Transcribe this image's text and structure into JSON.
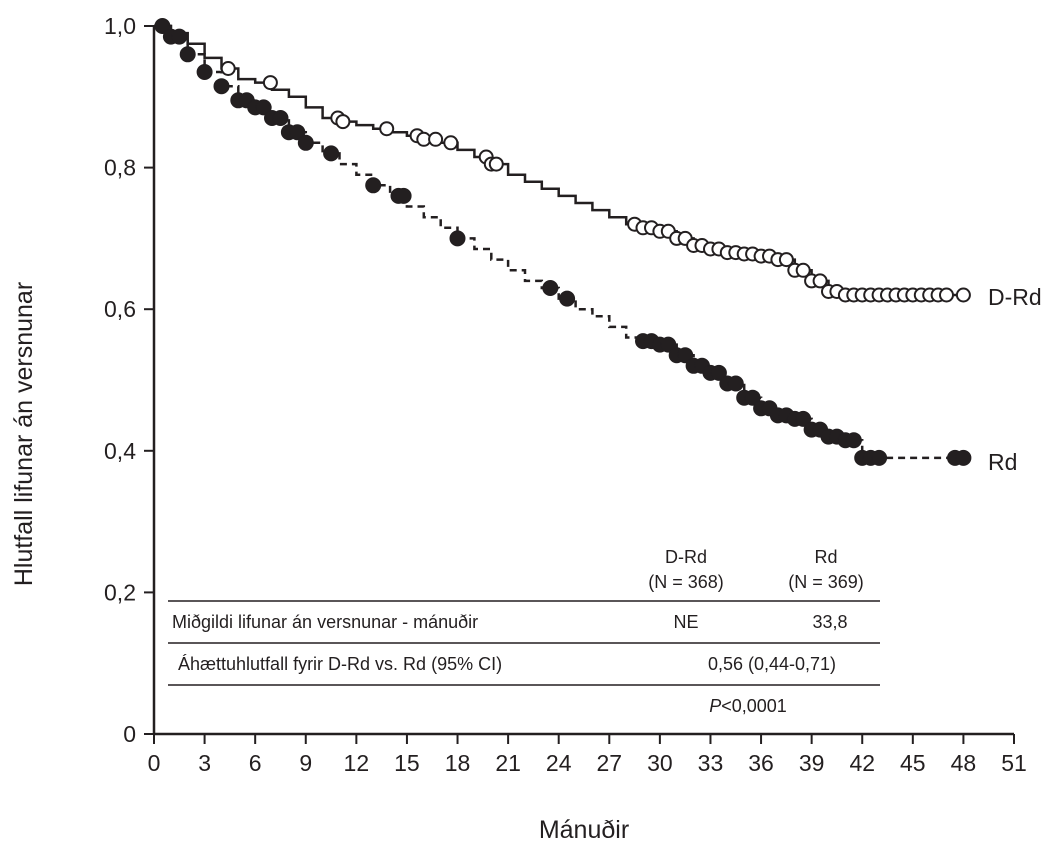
{
  "chart_data": {
    "type": "line",
    "title": "",
    "xlabel": "Mánuðir",
    "ylabel": "Hlutfall lifunar án versnunar",
    "xlim": [
      0,
      51
    ],
    "ylim": [
      0,
      1
    ],
    "x_ticks": [
      0,
      3,
      6,
      9,
      12,
      15,
      18,
      21,
      24,
      27,
      30,
      33,
      36,
      39,
      42,
      45,
      48,
      51
    ],
    "y_ticks": [
      {
        "value": 0,
        "label": "0"
      },
      {
        "value": 0.2,
        "label": "0,2"
      },
      {
        "value": 0.4,
        "label": "0,4"
      },
      {
        "value": 0.6,
        "label": "0,6"
      },
      {
        "value": 0.8,
        "label": "0,8"
      },
      {
        "value": 1.0,
        "label": "1,0"
      }
    ],
    "grid": false,
    "series": [
      {
        "name": "D-Rd",
        "color": "#231f20",
        "line_style": "solid",
        "marker": "open-circle",
        "x": [
          0,
          1,
          2,
          3,
          4,
          5,
          6,
          7,
          8,
          9,
          10,
          11,
          12,
          13,
          14,
          15,
          16,
          17,
          18,
          19,
          20,
          21,
          22,
          23,
          24,
          25,
          26,
          27,
          28,
          29,
          30,
          31,
          32,
          33,
          34,
          35,
          36,
          37,
          38,
          39,
          40,
          41,
          42,
          43,
          44,
          45,
          46,
          47,
          48
        ],
        "y": [
          1.0,
          0.99,
          0.975,
          0.955,
          0.94,
          0.925,
          0.92,
          0.91,
          0.9,
          0.885,
          0.87,
          0.865,
          0.86,
          0.855,
          0.85,
          0.845,
          0.84,
          0.835,
          0.825,
          0.815,
          0.805,
          0.79,
          0.78,
          0.77,
          0.76,
          0.75,
          0.74,
          0.73,
          0.72,
          0.715,
          0.71,
          0.7,
          0.69,
          0.685,
          0.68,
          0.678,
          0.675,
          0.67,
          0.655,
          0.64,
          0.625,
          0.62,
          0.62,
          0.62,
          0.62,
          0.62,
          0.62,
          0.62,
          0.62
        ],
        "censor_x": [
          4.4,
          6.9,
          10.9,
          11.2,
          13.8,
          15.6,
          16.0,
          16.7,
          17.6,
          19.7,
          20.0,
          20.3,
          28.5,
          29.0,
          29.5,
          30.0,
          30.5,
          31.0,
          31.5,
          32.0,
          32.5,
          33.0,
          33.5,
          34.0,
          34.5,
          35.0,
          35.5,
          36.0,
          36.5,
          37.0,
          37.5,
          38.0,
          38.5,
          39.0,
          39.5,
          40.0,
          40.5,
          41.0,
          41.5,
          42.0,
          42.5,
          43.0,
          43.5,
          44.0,
          44.5,
          45.0,
          45.5,
          46.0,
          46.5,
          47.0,
          48.0
        ]
      },
      {
        "name": "Rd",
        "color": "#231f20",
        "line_style": "dashed",
        "marker": "filled-circle",
        "x": [
          0,
          1,
          2,
          3,
          4,
          5,
          6,
          7,
          8,
          9,
          10,
          11,
          12,
          13,
          14,
          15,
          16,
          17,
          18,
          19,
          20,
          21,
          22,
          23,
          24,
          25,
          26,
          27,
          28,
          29,
          30,
          31,
          32,
          33,
          34,
          35,
          36,
          37,
          38,
          39,
          40,
          41,
          42,
          43,
          44,
          45,
          46,
          47,
          48
        ],
        "y": [
          1.0,
          0.985,
          0.96,
          0.935,
          0.915,
          0.895,
          0.885,
          0.87,
          0.85,
          0.835,
          0.82,
          0.805,
          0.79,
          0.775,
          0.76,
          0.745,
          0.73,
          0.715,
          0.7,
          0.685,
          0.67,
          0.655,
          0.64,
          0.63,
          0.615,
          0.6,
          0.59,
          0.575,
          0.56,
          0.555,
          0.55,
          0.535,
          0.52,
          0.51,
          0.495,
          0.475,
          0.46,
          0.45,
          0.445,
          0.43,
          0.42,
          0.415,
          0.39,
          0.39,
          0.39,
          0.39,
          0.39,
          0.39,
          0.39
        ],
        "censor_x": [
          0.5,
          1.0,
          1.5,
          2.0,
          3.0,
          4.0,
          5.0,
          5.5,
          6.0,
          6.5,
          7.0,
          7.5,
          8.0,
          8.5,
          9.0,
          10.5,
          13.0,
          14.5,
          14.8,
          18.0,
          23.5,
          24.5,
          29.0,
          29.5,
          30.0,
          30.5,
          31.0,
          31.5,
          32.0,
          32.5,
          33.0,
          33.5,
          34.0,
          34.5,
          35.0,
          35.5,
          36.0,
          36.5,
          37.0,
          37.5,
          38.0,
          38.5,
          39.0,
          39.5,
          40.0,
          40.5,
          41.0,
          41.5,
          42.0,
          42.5,
          43.0,
          47.5,
          48.0
        ]
      }
    ],
    "annotation_table": {
      "col1_name": "D-Rd",
      "col1_n": "(N = 368)",
      "col2_name": "Rd",
      "col2_n": "(N = 369)",
      "row1_label": "Miðgildi lifunar án versnunar - mánuðir",
      "row1_col1": "NE",
      "row1_col2": "33,8",
      "row2_label": "Áhættuhlutfall fyrir D-Rd vs. Rd (95% CI)",
      "row2_value": "0,56 (0,44-0,71)",
      "p_symbol": "P",
      "p_value": "<0,0001"
    }
  }
}
